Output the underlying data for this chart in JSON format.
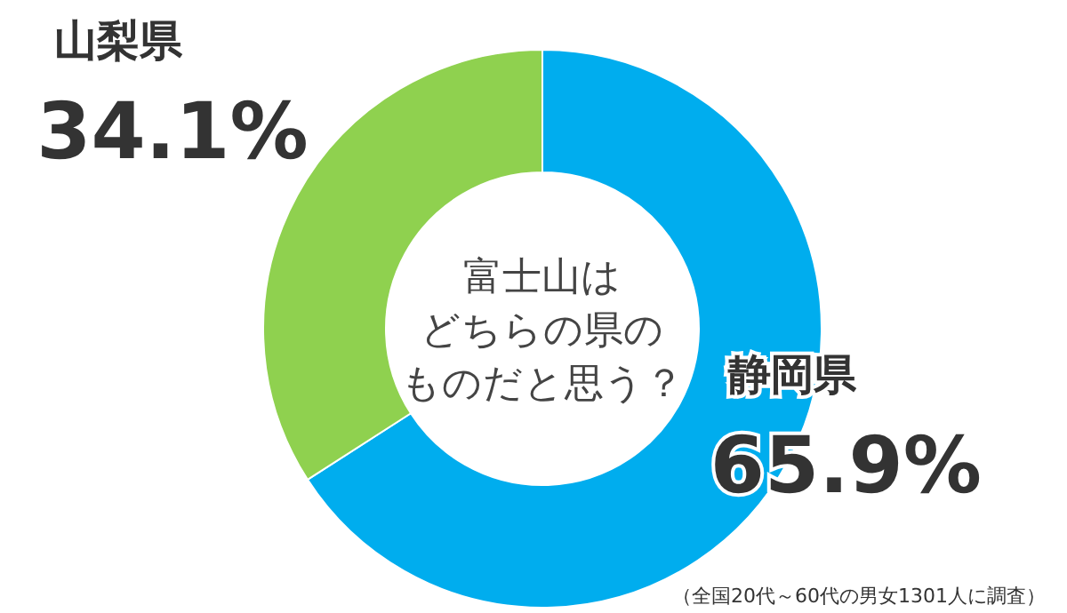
{
  "chart_data": {
    "type": "donut",
    "title": "富士山はどちらの県のものだと思う？",
    "categories": [
      "静岡県",
      "山梨県"
    ],
    "values": [
      65.9,
      34.1
    ],
    "colors": [
      "#00adee",
      "#8fd14f"
    ],
    "value_labels": [
      "65.9%",
      "34.1%"
    ],
    "annotations": [
      "（全国20代～60代の男女1301人に調査）"
    ]
  }
}
